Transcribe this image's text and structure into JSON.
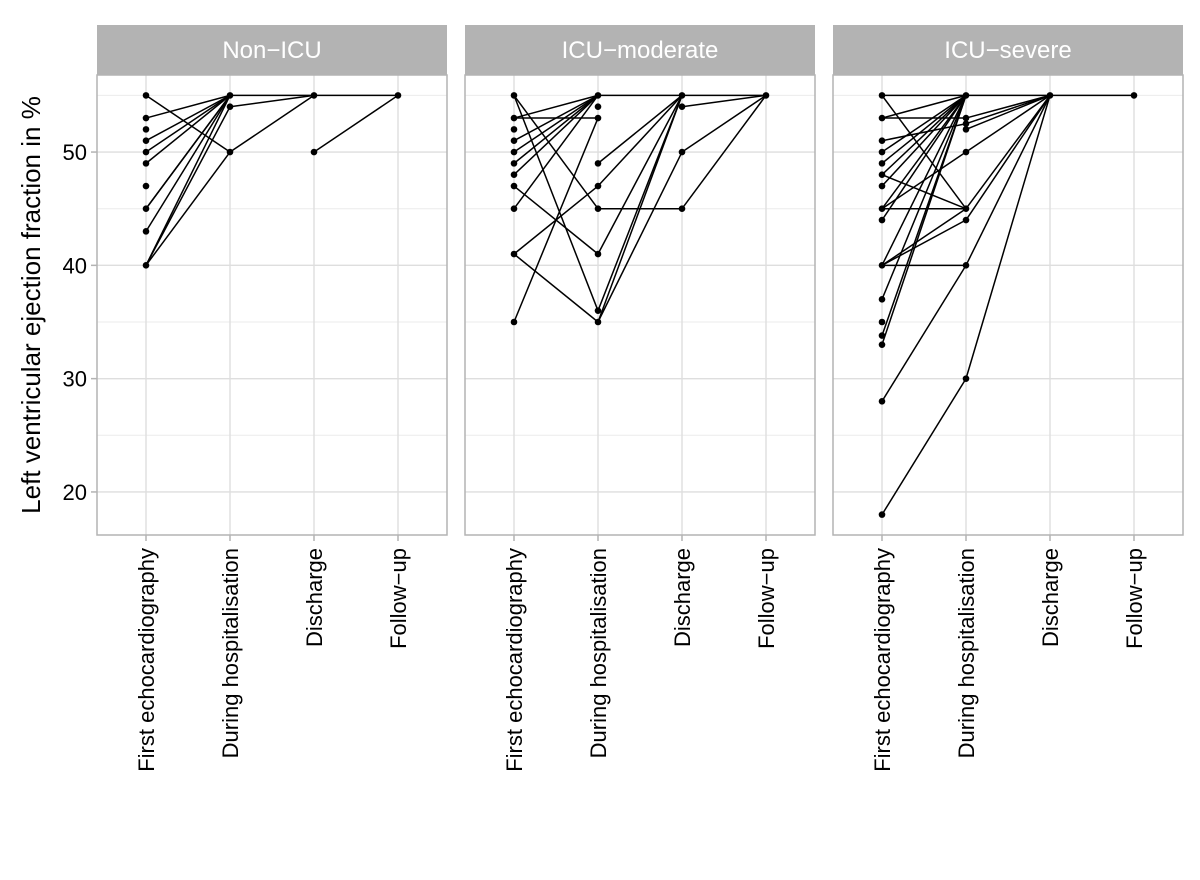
{
  "chart_data": {
    "type": "line",
    "ylabel": "Left ventricular ejection fraction in %",
    "xlabel": "",
    "ylim": [
      16.2,
      56.8
    ],
    "yticks": [
      20,
      30,
      40,
      50
    ],
    "categories": [
      "First echocardiography",
      "During hospitalisation",
      "Discharge",
      "Follow−up"
    ],
    "grid": true,
    "facets": [
      {
        "title": "Non−ICU",
        "points": [
          [
            0,
            55
          ],
          [
            0,
            53
          ],
          [
            0,
            52
          ],
          [
            0,
            51
          ],
          [
            0,
            50
          ],
          [
            0,
            49
          ],
          [
            0,
            47
          ],
          [
            0,
            45
          ],
          [
            0,
            43
          ],
          [
            0,
            40
          ],
          [
            1,
            55
          ],
          [
            1,
            54
          ],
          [
            1,
            50
          ],
          [
            2,
            55
          ],
          [
            2,
            50
          ],
          [
            3,
            55
          ]
        ],
        "segments": [
          [
            0,
            55,
            1,
            50
          ],
          [
            0,
            53,
            1,
            55
          ],
          [
            0,
            51,
            1,
            55
          ],
          [
            0,
            50,
            1,
            55
          ],
          [
            0,
            49,
            1,
            55
          ],
          [
            0,
            45,
            1,
            55
          ],
          [
            0,
            45,
            1,
            55
          ],
          [
            0,
            43,
            1,
            55
          ],
          [
            0,
            40,
            1,
            55
          ],
          [
            0,
            40,
            1,
            54
          ],
          [
            0,
            40,
            1,
            50
          ],
          [
            1,
            55,
            2,
            55
          ],
          [
            1,
            54,
            2,
            55
          ],
          [
            1,
            50,
            2,
            55
          ],
          [
            2,
            55,
            3,
            55
          ],
          [
            2,
            50,
            3,
            55
          ]
        ]
      },
      {
        "title": "ICU−moderate",
        "points": [
          [
            0,
            55
          ],
          [
            0,
            53
          ],
          [
            0,
            52
          ],
          [
            0,
            51
          ],
          [
            0,
            50
          ],
          [
            0,
            49
          ],
          [
            0,
            48
          ],
          [
            0,
            47
          ],
          [
            0,
            45
          ],
          [
            0,
            41
          ],
          [
            0,
            35
          ],
          [
            1,
            55
          ],
          [
            1,
            54
          ],
          [
            1,
            53
          ],
          [
            1,
            49
          ],
          [
            1,
            47
          ],
          [
            1,
            45
          ],
          [
            1,
            41
          ],
          [
            1,
            36
          ],
          [
            1,
            35
          ],
          [
            2,
            55
          ],
          [
            2,
            54
          ],
          [
            2,
            50
          ],
          [
            2,
            45
          ],
          [
            3,
            55
          ]
        ],
        "segments": [
          [
            0,
            55,
            1,
            45
          ],
          [
            0,
            55,
            1,
            36
          ],
          [
            0,
            53,
            1,
            55
          ],
          [
            0,
            53,
            1,
            53
          ],
          [
            0,
            51,
            1,
            55
          ],
          [
            0,
            50,
            1,
            55
          ],
          [
            0,
            49,
            1,
            55
          ],
          [
            0,
            48,
            1,
            55
          ],
          [
            0,
            47,
            1,
            41
          ],
          [
            0,
            45,
            1,
            55
          ],
          [
            0,
            41,
            1,
            47
          ],
          [
            0,
            41,
            1,
            35
          ],
          [
            0,
            35,
            1,
            53
          ],
          [
            1,
            55,
            2,
            55
          ],
          [
            1,
            49,
            2,
            55
          ],
          [
            1,
            47,
            2,
            55
          ],
          [
            1,
            45,
            2,
            45
          ],
          [
            1,
            41,
            2,
            55
          ],
          [
            1,
            36,
            2,
            55
          ],
          [
            1,
            35,
            2,
            55
          ],
          [
            1,
            35,
            2,
            50
          ],
          [
            2,
            55,
            3,
            55
          ],
          [
            2,
            54,
            3,
            55
          ],
          [
            2,
            50,
            3,
            55
          ],
          [
            2,
            45,
            3,
            55
          ]
        ]
      },
      {
        "title": "ICU−severe",
        "points": [
          [
            0,
            55
          ],
          [
            0,
            53
          ],
          [
            0,
            51
          ],
          [
            0,
            50
          ],
          [
            0,
            49
          ],
          [
            0,
            48
          ],
          [
            0,
            47
          ],
          [
            0,
            45
          ],
          [
            0,
            44
          ],
          [
            0,
            40
          ],
          [
            0,
            37
          ],
          [
            0,
            35
          ],
          [
            0,
            33.8
          ],
          [
            0,
            33
          ],
          [
            0,
            28
          ],
          [
            0,
            18
          ],
          [
            1,
            55
          ],
          [
            1,
            53
          ],
          [
            1,
            52.5
          ],
          [
            1,
            52
          ],
          [
            1,
            50
          ],
          [
            1,
            45
          ],
          [
            1,
            44
          ],
          [
            1,
            40
          ],
          [
            1,
            30
          ],
          [
            2,
            55
          ],
          [
            3,
            55
          ]
        ],
        "segments": [
          [
            0,
            55,
            1,
            45
          ],
          [
            0,
            55,
            1,
            55
          ],
          [
            0,
            53,
            1,
            53
          ],
          [
            0,
            53,
            1,
            55
          ],
          [
            0,
            51,
            1,
            52.5
          ],
          [
            0,
            50,
            1,
            55
          ],
          [
            0,
            49,
            1,
            55
          ],
          [
            0,
            48,
            1,
            45
          ],
          [
            0,
            48,
            1,
            55
          ],
          [
            0,
            47,
            1,
            55
          ],
          [
            0,
            45,
            1,
            45
          ],
          [
            0,
            45,
            1,
            55
          ],
          [
            0,
            45,
            1,
            50
          ],
          [
            0,
            44,
            1,
            55
          ],
          [
            0,
            40,
            1,
            40
          ],
          [
            0,
            40,
            1,
            44
          ],
          [
            0,
            40,
            1,
            45
          ],
          [
            0,
            40,
            1,
            55
          ],
          [
            0,
            37,
            1,
            55
          ],
          [
            0,
            33.8,
            1,
            55
          ],
          [
            0,
            33,
            1,
            55
          ],
          [
            0,
            28,
            1,
            40
          ],
          [
            0,
            18,
            1,
            30
          ],
          [
            1,
            55,
            2,
            55
          ],
          [
            1,
            53,
            2,
            55
          ],
          [
            1,
            52.5,
            2,
            55
          ],
          [
            1,
            52,
            2,
            55
          ],
          [
            1,
            50,
            2,
            55
          ],
          [
            1,
            45,
            2,
            55
          ],
          [
            1,
            44,
            2,
            55
          ],
          [
            1,
            40,
            2,
            55
          ],
          [
            1,
            30,
            2,
            55
          ],
          [
            2,
            55,
            3,
            55
          ]
        ]
      }
    ]
  }
}
